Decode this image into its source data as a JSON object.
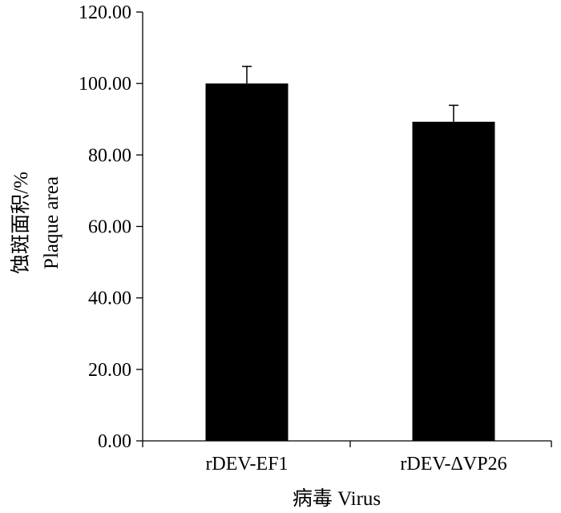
{
  "chart_data": {
    "type": "bar",
    "categories": [
      "rDEV-EF1",
      "rDEV-ΔVP26"
    ],
    "values": [
      100.0,
      89.3
    ],
    "error": [
      4.8,
      4.6
    ],
    "ylim": [
      0,
      120
    ],
    "yticks": [
      "0.00",
      "20.00",
      "40.00",
      "60.00",
      "80.00",
      "100.00",
      "120.00"
    ],
    "ytick_values": [
      0,
      20,
      40,
      60,
      80,
      100,
      120
    ],
    "xlabel": "病毒 Virus",
    "ylabel_cn": "蚀斑面积/%",
    "ylabel_en": "Plaque area",
    "grid": false,
    "bar_color": "#000000"
  }
}
